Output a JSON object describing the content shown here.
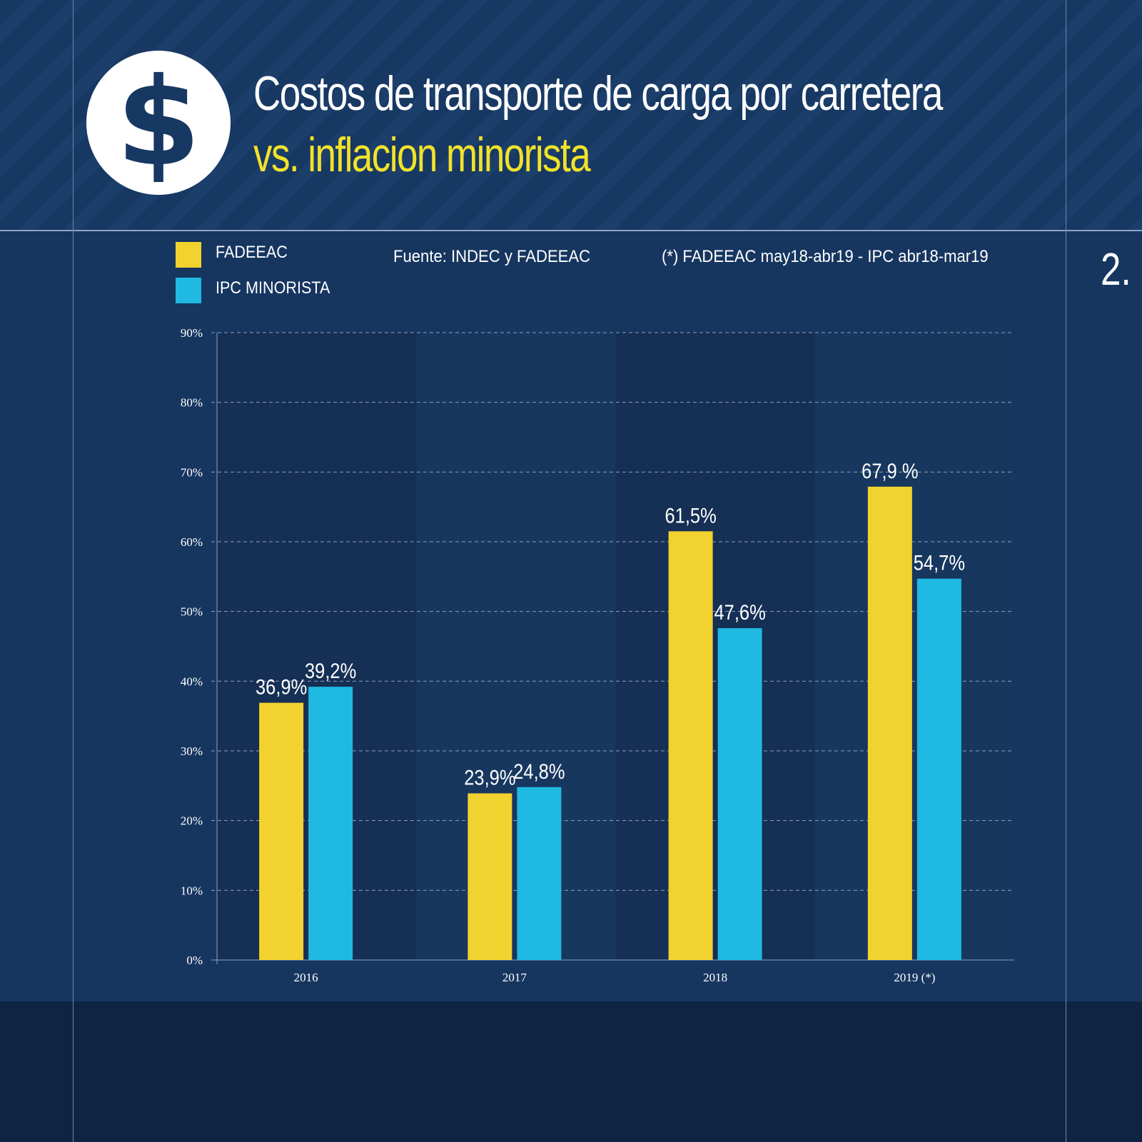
{
  "header": {
    "icon": "dollar-icon",
    "icon_glyph": "$",
    "title_line1": "Costos de transporte de carga por carretera",
    "title_line2": "vs. inflacion minorista"
  },
  "page_number": "2.",
  "source": "Fuente: INDEC y FADEEAC",
  "footnote": "(*) FADEEAC  may18-abr19 - IPC abr18-mar19",
  "chart_data": {
    "type": "bar",
    "categories": [
      "2016",
      "2017",
      "2018",
      "2019 (*)"
    ],
    "series": [
      {
        "name": "FADEEAC",
        "color": "#f2d22e",
        "values": [
          36.9,
          23.9,
          61.5,
          67.9
        ],
        "labels": [
          "36,9%",
          "23,9%",
          "61,5%",
          "67,9 %"
        ]
      },
      {
        "name": "IPC MINORISTA",
        "color": "#1fb9e2",
        "values": [
          39.2,
          24.8,
          47.6,
          54.7
        ],
        "labels": [
          "39,2%",
          "24,8%",
          "47,6%",
          "54,7%"
        ]
      }
    ],
    "ylim": [
      0,
      90
    ],
    "yticks": [
      0,
      10,
      20,
      30,
      40,
      50,
      60,
      70,
      80,
      90
    ],
    "ytick_labels": [
      "0%",
      "10%",
      "20%",
      "30%",
      "40%",
      "50%",
      "60%",
      "70%",
      "80%",
      "90%"
    ],
    "grid": true,
    "legend": "top-left"
  }
}
